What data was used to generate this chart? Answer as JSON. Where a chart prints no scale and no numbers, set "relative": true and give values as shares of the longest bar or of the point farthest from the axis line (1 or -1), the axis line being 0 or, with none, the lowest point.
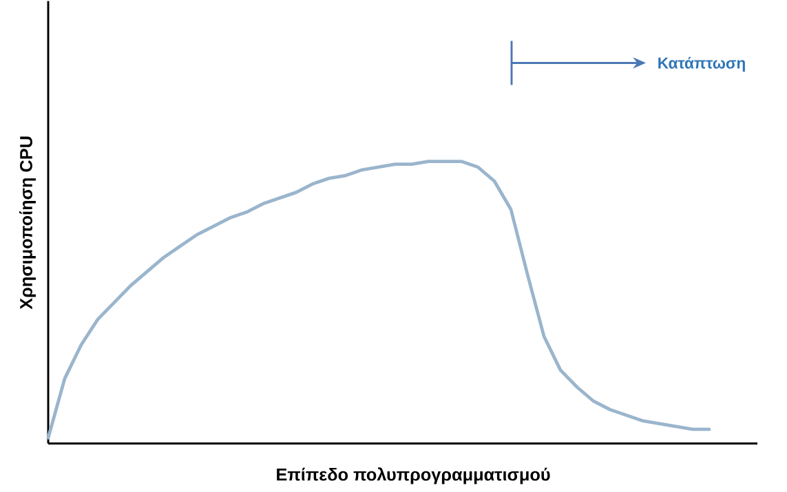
{
  "chart_data": {
    "type": "line",
    "relative": true,
    "xlabel": "Επίπεδο πολυπρογραμματισμού",
    "ylabel": "Χρησιμοποίηση CPU",
    "annotations": [
      "Κατάπτωση"
    ],
    "color": "#9ab5cc",
    "categories": [
      null,
      null,
      null,
      null,
      null,
      null,
      null,
      null,
      null,
      null,
      null,
      null,
      null,
      null,
      null,
      null,
      null,
      null,
      null,
      null,
      null,
      null,
      null,
      null,
      null,
      null,
      null,
      null,
      null,
      null,
      null,
      null,
      null,
      null,
      null,
      null,
      null,
      null,
      null,
      null,
      null
    ],
    "values": [
      0.02,
      0.23,
      0.35,
      0.44,
      0.5,
      0.56,
      0.61,
      0.66,
      0.7,
      0.74,
      0.77,
      0.8,
      0.82,
      0.85,
      0.87,
      0.89,
      0.92,
      0.94,
      0.95,
      0.97,
      0.98,
      0.99,
      0.99,
      1.0,
      1.0,
      1.0,
      0.98,
      0.93,
      0.83,
      0.6,
      0.38,
      0.26,
      0.2,
      0.15,
      0.12,
      0.1,
      0.08,
      0.07,
      0.06,
      0.05,
      0.05
    ],
    "marker": "none",
    "line_style": "solid"
  }
}
